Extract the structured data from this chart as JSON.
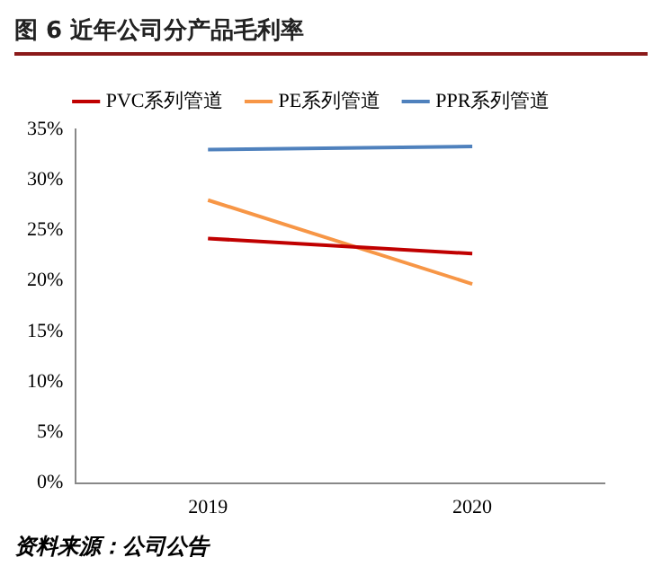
{
  "chart_data": {
    "type": "line",
    "title": "图 6 近年公司分产品毛利率",
    "categories": [
      "2019",
      "2020"
    ],
    "series": [
      {
        "name": "PVC系列管道",
        "color": "#c00000",
        "values": [
          24.2,
          22.7
        ]
      },
      {
        "name": "PE系列管道",
        "color": "#f79646",
        "values": [
          28,
          19.7
        ]
      },
      {
        "name": "PPR系列管道",
        "color": "#4f81bd",
        "values": [
          33,
          33.3
        ]
      }
    ],
    "ylim": [
      0,
      35
    ],
    "yticks": [
      {
        "value": 0,
        "label": "0%"
      },
      {
        "value": 5,
        "label": "5%"
      },
      {
        "value": 10,
        "label": "10%"
      },
      {
        "value": 15,
        "label": "15%"
      },
      {
        "value": 20,
        "label": "20%"
      },
      {
        "value": 25,
        "label": "25%"
      },
      {
        "value": 30,
        "label": "30%"
      },
      {
        "value": 35,
        "label": "35%"
      }
    ],
    "grid": false,
    "legend": "top",
    "marker": "none",
    "line_style": "solid",
    "annotations": [
      "资料来源：公司公告"
    ]
  }
}
